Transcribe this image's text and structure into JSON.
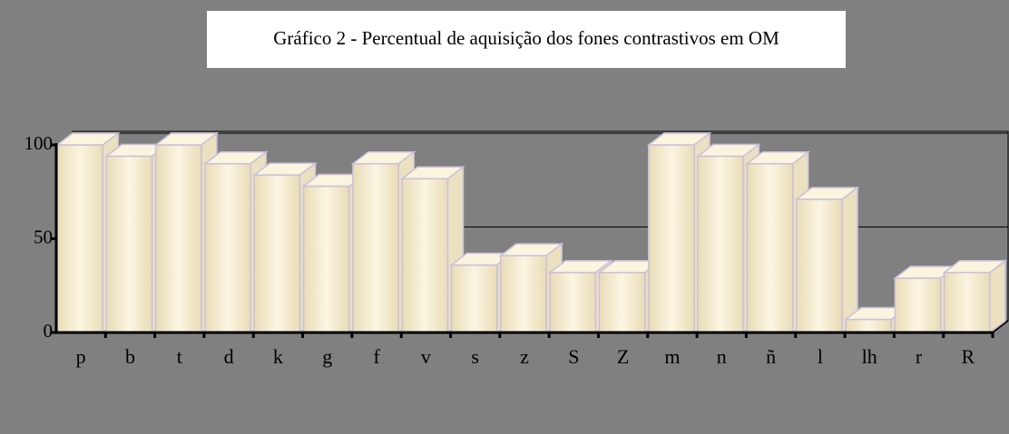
{
  "chart_data": {
    "type": "bar3d",
    "title": "Gráfico 2 - Percentual de aquisição dos fones contrastivos em OM",
    "categories": [
      "p",
      "b",
      "t",
      "d",
      "k",
      "g",
      "f",
      "v",
      "s",
      "z",
      "S",
      "Z",
      "m",
      "n",
      "ñ",
      "l",
      "lh",
      "r",
      "R"
    ],
    "values": [
      100,
      94,
      100,
      90,
      84,
      78,
      90,
      82,
      36,
      41,
      32,
      32,
      100,
      94,
      90,
      71,
      7,
      29,
      32
    ],
    "color": "#f6eed3",
    "ylim": [
      0,
      100
    ],
    "yticks": [
      0,
      50,
      100
    ],
    "grid": true
  }
}
